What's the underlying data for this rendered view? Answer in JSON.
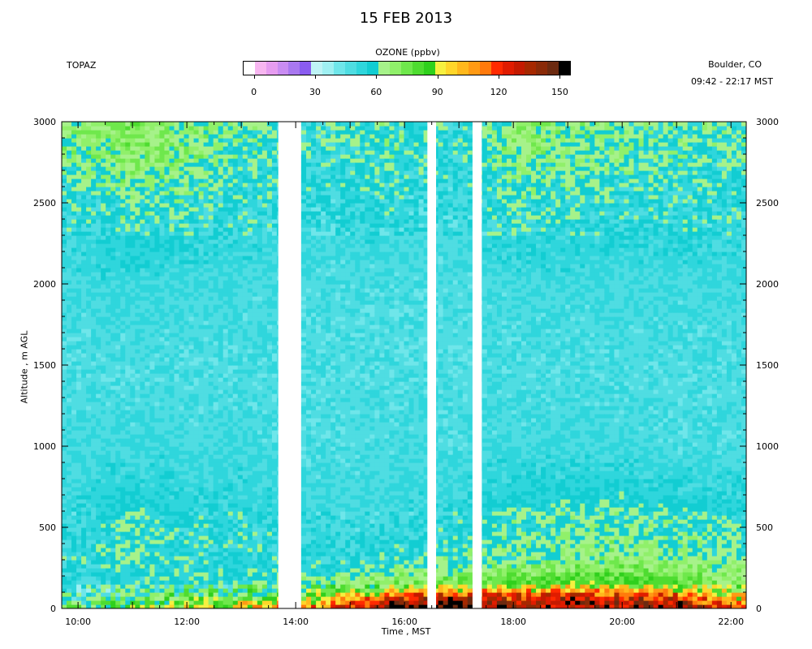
{
  "title": "15 FEB 2013",
  "station": "TOPAZ",
  "location": "Boulder, CO",
  "time_range": "09:42 - 22:17 MST",
  "colorbar": {
    "title": "OZONE (ppbv)",
    "tick_labels": [
      "0",
      "30",
      "60",
      "90",
      "120",
      "150"
    ],
    "tick_values": [
      0,
      30,
      60,
      90,
      120,
      150
    ],
    "range": [
      -5,
      155
    ],
    "colors": [
      "#ffffff",
      "#f7b6f0",
      "#e69cf0",
      "#c98cf2",
      "#a978f0",
      "#8a5cf0",
      "#bff4f6",
      "#9ff0f2",
      "#6fe6ea",
      "#4fdde2",
      "#2fd6dc",
      "#12cdd2",
      "#a6f28a",
      "#90f06a",
      "#6fe84c",
      "#4edc30",
      "#2fd01c",
      "#f6f040",
      "#ffd62a",
      "#ffb81c",
      "#ff9a14",
      "#ff7a0c",
      "#ff2a00",
      "#e01c00",
      "#c41a00",
      "#a62800",
      "#8a2a08",
      "#6c2a10",
      "#000000"
    ]
  },
  "chart_data": {
    "type": "heatmap",
    "title": "15 FEB 2013",
    "variable": "OZONE (ppbv)",
    "xlabel": "Time , MST",
    "ylabel": "Altitude , m AGL",
    "x_ticks": [
      "10:00",
      "12:00",
      "14:00",
      "16:00",
      "18:00",
      "20:00",
      "22:00"
    ],
    "x_tick_hours": [
      10,
      12,
      14,
      16,
      18,
      20,
      22
    ],
    "xlim_hours": [
      9.7,
      22.28
    ],
    "y_ticks": [
      "0",
      "500",
      "1000",
      "1500",
      "2000",
      "2500",
      "3000"
    ],
    "y_tick_values": [
      0,
      500,
      1000,
      1500,
      2000,
      2500,
      3000
    ],
    "ylim": [
      0,
      3000
    ],
    "data_gaps_hours": [
      [
        13.68,
        14.1
      ],
      [
        16.42,
        16.58
      ],
      [
        17.25,
        17.42
      ]
    ],
    "altitudes_m": [
      25,
      75,
      150,
      300,
      500,
      1000,
      1500,
      2000,
      2500,
      2850
    ],
    "profiles": [
      {
        "time_hours": 10.0,
        "ozone_ppbv": [
          65,
          55,
          50,
          55,
          52,
          50,
          48,
          50,
          55,
          65
        ]
      },
      {
        "time_hours": 11.0,
        "ozone_ppbv": [
          75,
          65,
          55,
          58,
          60,
          50,
          48,
          52,
          60,
          72
        ]
      },
      {
        "time_hours": 12.0,
        "ozone_ppbv": [
          85,
          70,
          58,
          58,
          55,
          50,
          48,
          50,
          58,
          68
        ]
      },
      {
        "time_hours": 13.0,
        "ozone_ppbv": [
          95,
          75,
          58,
          55,
          55,
          50,
          48,
          50,
          55,
          60
        ]
      },
      {
        "time_hours": 14.5,
        "ozone_ppbv": [
          110,
          90,
          65,
          55,
          50,
          48,
          48,
          48,
          52,
          55
        ]
      },
      {
        "time_hours": 15.5,
        "ozone_ppbv": [
          135,
          110,
          70,
          55,
          52,
          48,
          48,
          48,
          55,
          60
        ]
      },
      {
        "time_hours": 16.2,
        "ozone_ppbv": [
          145,
          125,
          75,
          58,
          52,
          50,
          48,
          48,
          52,
          58
        ]
      },
      {
        "time_hours": 17.0,
        "ozone_ppbv": [
          150,
          130,
          75,
          60,
          55,
          48,
          48,
          48,
          52,
          55
        ]
      },
      {
        "time_hours": 18.0,
        "ozone_ppbv": [
          135,
          125,
          80,
          62,
          60,
          50,
          48,
          50,
          58,
          66
        ]
      },
      {
        "time_hours": 19.0,
        "ozone_ppbv": [
          140,
          130,
          85,
          65,
          62,
          50,
          48,
          50,
          58,
          65
        ]
      },
      {
        "time_hours": 20.0,
        "ozone_ppbv": [
          135,
          125,
          82,
          68,
          62,
          50,
          48,
          50,
          56,
          62
        ]
      },
      {
        "time_hours": 21.0,
        "ozone_ppbv": [
          140,
          125,
          80,
          65,
          60,
          48,
          48,
          50,
          55,
          60
        ]
      },
      {
        "time_hours": 22.0,
        "ozone_ppbv": [
          110,
          95,
          72,
          62,
          58,
          48,
          48,
          50,
          55,
          60
        ]
      }
    ],
    "grid": false,
    "legend": "colorbar-top"
  }
}
